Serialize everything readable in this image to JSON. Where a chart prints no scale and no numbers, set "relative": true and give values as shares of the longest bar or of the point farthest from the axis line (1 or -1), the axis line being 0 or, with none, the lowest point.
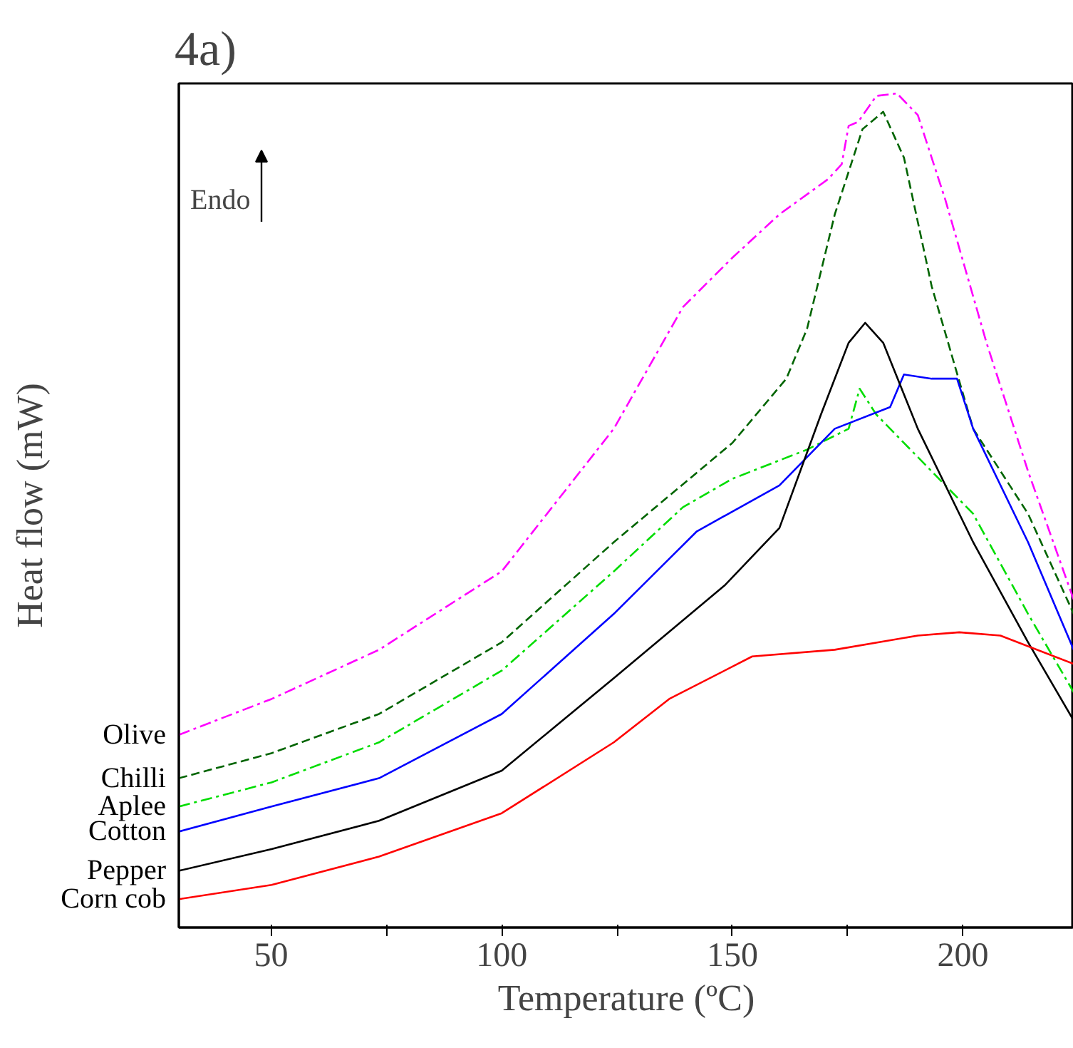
{
  "chart_data": {
    "type": "line",
    "title": "4a)",
    "xlabel": "Temperature (ºC)",
    "ylabel": "Heat flow (mW)",
    "relative": true,
    "grid": false,
    "marker": "none",
    "xlim": [
      30,
      224
    ],
    "xticks": [
      50,
      {
        "value": 75,
        "label": null
      },
      100,
      {
        "value": 125,
        "label": null
      },
      150,
      {
        "value": 175,
        "label": null
      },
      200
    ],
    "annotations": [
      "Endo"
    ],
    "series": [
      {
        "name": "Olive",
        "color": "#ff00ff",
        "line_style": "dashdot",
        "x": [
          30,
          50.1,
          73.4,
          100,
          124.3,
          139.3,
          150,
          160.2,
          170.7,
          173.7,
          175.2,
          177.3,
          181.2,
          185.7,
          190.2,
          196.2,
          205.1,
          214.1,
          224
        ],
        "values": [
          0.231,
          0.274,
          0.333,
          0.427,
          0.598,
          0.744,
          0.803,
          0.855,
          0.897,
          0.915,
          0.961,
          0.966,
          0.997,
          1.0,
          0.974,
          0.872,
          0.701,
          0.547,
          0.393
        ]
      },
      {
        "name": "Chilli",
        "color": "#006400",
        "line_style": "dashed",
        "x": [
          30,
          50.1,
          73.4,
          100,
          124.3,
          150,
          161.7,
          166.2,
          172.2,
          178.2,
          182.7,
          187.2,
          193.2,
          202.2,
          214.1,
          224
        ],
        "values": [
          0.179,
          0.209,
          0.256,
          0.342,
          0.462,
          0.581,
          0.658,
          0.718,
          0.855,
          0.957,
          0.978,
          0.923,
          0.769,
          0.598,
          0.496,
          0.376
        ]
      },
      {
        "name": "Aplee",
        "color": "#00dd00",
        "line_style": "dashdot",
        "x": [
          30,
          50.1,
          73.4,
          100,
          124.3,
          139.3,
          150,
          166.2,
          175.2,
          177.6,
          181.2,
          190.2,
          202.2,
          214.1,
          224
        ],
        "values": [
          0.145,
          0.174,
          0.222,
          0.308,
          0.427,
          0.504,
          0.538,
          0.573,
          0.598,
          0.646,
          0.615,
          0.564,
          0.496,
          0.376,
          0.282
        ]
      },
      {
        "name": "Cotton",
        "color": "#0000ff",
        "line_style": "solid",
        "x": [
          30,
          50.1,
          73.4,
          100,
          124.3,
          142.3,
          160.2,
          172.2,
          184.2,
          187.2,
          193.2,
          198.7,
          202.2,
          214.1,
          224
        ],
        "values": [
          0.115,
          0.145,
          0.179,
          0.256,
          0.376,
          0.475,
          0.53,
          0.598,
          0.624,
          0.663,
          0.658,
          0.658,
          0.598,
          0.462,
          0.333
        ]
      },
      {
        "name": "Pepper",
        "color": "#000000",
        "line_style": "solid",
        "x": [
          30,
          50.1,
          73.4,
          100,
          124.3,
          148.3,
          160.2,
          169.2,
          175.2,
          178.8,
          182.7,
          190.2,
          202.2,
          214.1,
          224
        ],
        "values": [
          0.068,
          0.094,
          0.128,
          0.188,
          0.299,
          0.41,
          0.479,
          0.615,
          0.701,
          0.725,
          0.701,
          0.598,
          0.462,
          0.342,
          0.248
        ]
      },
      {
        "name": "Corn cob",
        "color": "#ff0000",
        "line_style": "solid",
        "x": [
          30,
          50.1,
          73.4,
          100,
          124.3,
          136.3,
          154.3,
          172.2,
          190.2,
          199.2,
          208.1,
          224
        ],
        "values": [
          0.034,
          0.051,
          0.085,
          0.137,
          0.222,
          0.274,
          0.325,
          0.333,
          0.35,
          0.354,
          0.35,
          0.316
        ]
      }
    ]
  }
}
